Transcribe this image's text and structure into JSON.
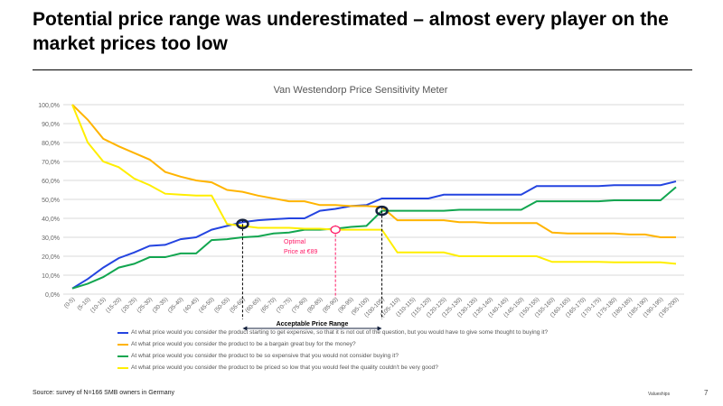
{
  "title": "Potential price range was underestimated – almost every player on the market prices too low",
  "source": "Source:  survey of N=166  SMB owners  in Germany",
  "logo": "Valueships",
  "page_number": "7",
  "chart_data": {
    "type": "line",
    "title": "Van Westendorp Price Sensitivity Meter",
    "ylim": [
      0,
      100
    ],
    "yticks": [
      "0,0%",
      "10,0%",
      "20,0%",
      "30,0%",
      "40,0%",
      "50,0%",
      "60,0%",
      "70,0%",
      "80,0%",
      "90,0%",
      "100,0%"
    ],
    "categories": [
      "(0-5)",
      "(5-10)",
      "(10-15)",
      "(15-20)",
      "(20-25)",
      "(25-30)",
      "(30-35)",
      "(35-40)",
      "(40-45)",
      "(45-50)",
      "(50-55)",
      "(55-60)",
      "(60-65)",
      "(65-70)",
      "(70-75)",
      "(75-80)",
      "(80-85)",
      "(85-90)",
      "(90-95)",
      "(95-100)",
      "(100-105)",
      "(105-110)",
      "(110-115)",
      "(115-120)",
      "(120-125)",
      "(125-130)",
      "(130-135)",
      "(135-140)",
      "(140-145)",
      "(145-150)",
      "(150-155)",
      "(155-160)",
      "(160-165)",
      "(165-170)",
      "(170-175)",
      "(175-180)",
      "(180-185)",
      "(185-190)",
      "(190-195)",
      "(195-200)"
    ],
    "series": [
      {
        "name": "At what price would you consider the product starting to get expensive, so that it is not out of the question, but you would have to give some thought to buying it?",
        "color": "#2444e0",
        "values": [
          3,
          8,
          14,
          19,
          22,
          25.5,
          26,
          29,
          30,
          34,
          36,
          38,
          39,
          39.5,
          40,
          40,
          44,
          45,
          46.5,
          47,
          50.5,
          50.5,
          50.5,
          50.5,
          52.5,
          52.5,
          52.5,
          52.5,
          52.5,
          52.5,
          57,
          57,
          57,
          57,
          57,
          57.5,
          57.5,
          57.5,
          57.5,
          59.5
        ]
      },
      {
        "name": "At what price would you consider the product to be a bargain great buy for the money?",
        "color": "#ffb400",
        "values": [
          100,
          92,
          82,
          78,
          74.5,
          71,
          64.5,
          62,
          60,
          59,
          55,
          54,
          52,
          50.5,
          49,
          49,
          47,
          47,
          46.5,
          46.5,
          46,
          39,
          39,
          39,
          39,
          38,
          38,
          37.5,
          37.5,
          37.5,
          37.5,
          32.5,
          32,
          32,
          32,
          32,
          31.5,
          31.5,
          30,
          30
        ]
      },
      {
        "name": "At what price would you consider the product to be so expensive that you would not consider buying it?",
        "color": "#12a650",
        "values": [
          3,
          5.5,
          9,
          14,
          16,
          19.5,
          19.5,
          21.5,
          21.5,
          28.5,
          29,
          30,
          30.5,
          32,
          32.5,
          34,
          34,
          34.5,
          35.5,
          36,
          44,
          44,
          44,
          44,
          44,
          44.5,
          44.5,
          44.5,
          44.5,
          44.5,
          49,
          49,
          49,
          49,
          49,
          49.5,
          49.5,
          49.5,
          49.5,
          56.5
        ]
      },
      {
        "name": "At what price would you consider the product to be priced so low that you would feel the quality couldn't be very good?",
        "color": "#ffee00",
        "values": [
          100,
          80,
          70,
          67,
          61,
          57.5,
          53,
          52.5,
          52,
          52,
          37,
          36,
          35,
          35,
          35,
          34.5,
          34.5,
          34,
          34,
          34,
          34,
          22,
          22,
          22,
          22,
          20,
          20,
          20,
          20,
          20,
          20,
          17,
          17,
          17,
          17,
          16.8,
          16.8,
          16.8,
          16.8,
          16
        ]
      }
    ],
    "annotations": {
      "optimal_label_1": "Optimal",
      "optimal_label_2": "Price at €89",
      "optimal_index": 17,
      "optimal_value": 34,
      "range_label": "Acceptable   Price  Range",
      "range_start_index": 11,
      "range_start_value": 37,
      "range_end_index": 20,
      "range_end_value": 44,
      "accent": "#ff1a66"
    }
  }
}
